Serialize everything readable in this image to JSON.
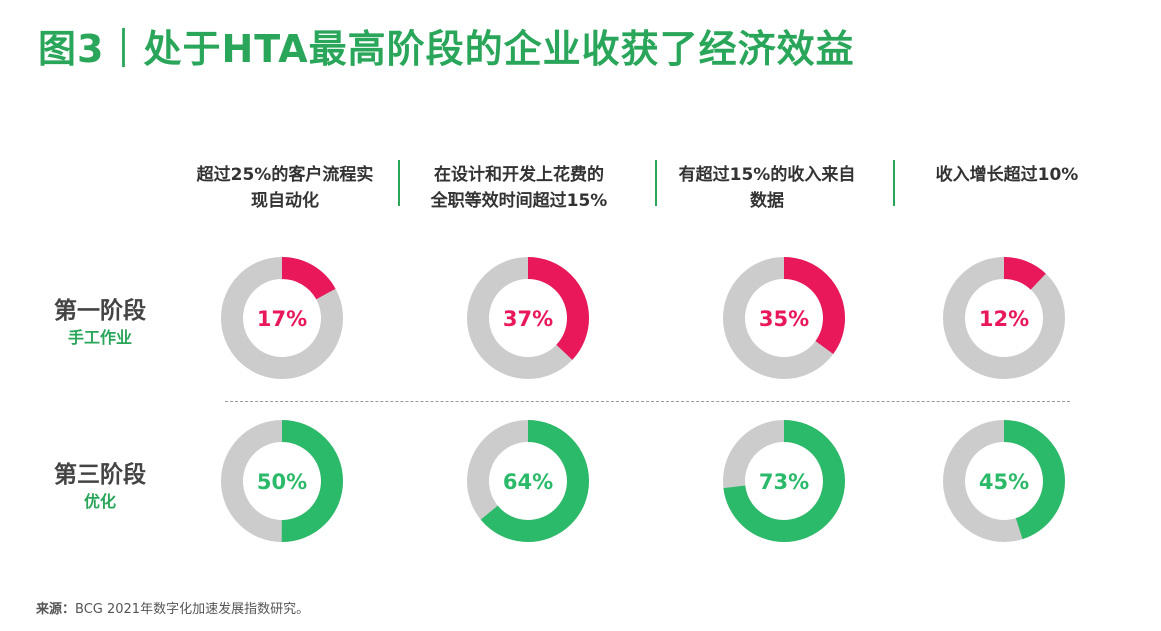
{
  "title": "图3｜处于HTA最高阶段的企业收获了经济效益",
  "source": {
    "label": "来源：",
    "text": "BCG 2021年数字化加速发展指数研究。"
  },
  "colors": {
    "accent": "#2aa65a",
    "stage1": "#e8185a",
    "stage3": "#2bba69",
    "track": "#cccccc"
  },
  "chart_data": {
    "type": "donut",
    "metrics": [
      {
        "line1": "超过25%的客户流程实",
        "line2": "现自动化"
      },
      {
        "line1": "在设计和开发上花费的",
        "line2": "全职等效时间超过15%"
      },
      {
        "line1": "有超过15%的收入来自",
        "line2": "数据"
      },
      {
        "line1": "收入增长超过10%",
        "line2": ""
      }
    ],
    "stages": [
      {
        "name": "第一阶段",
        "subtitle": "手工作业",
        "color": "#e8185a",
        "values": [
          17,
          37,
          35,
          12
        ],
        "labels": [
          "17%",
          "37%",
          "35%",
          "12%"
        ]
      },
      {
        "name": "第三阶段",
        "subtitle": "优化",
        "color": "#2bba69",
        "values": [
          50,
          64,
          73,
          45
        ],
        "labels": [
          "50%",
          "64%",
          "73%",
          "45%"
        ]
      }
    ],
    "unit": "%",
    "range": [
      0,
      100
    ]
  }
}
